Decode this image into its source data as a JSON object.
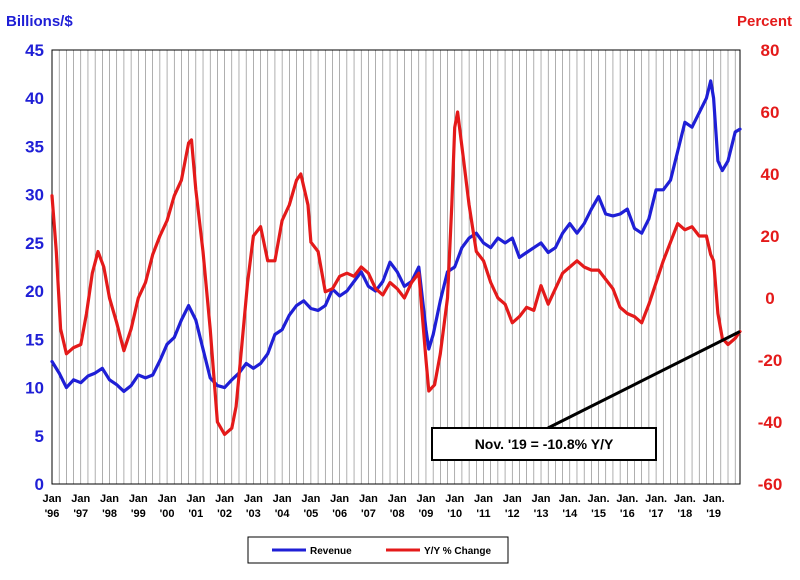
{
  "chart_data": {
    "type": "line",
    "left_axis": {
      "title": "Billions/$",
      "ylim": [
        0,
        45
      ],
      "ticks": [
        "45",
        "40",
        "35",
        "30",
        "25",
        "20",
        "15",
        "10",
        "5",
        "0"
      ],
      "color": "#1f1fd6"
    },
    "right_axis": {
      "title": "Percent",
      "ylim": [
        -60,
        80
      ],
      "ticks": [
        "80",
        "60",
        "40",
        "20",
        "0",
        "-20",
        "-40",
        "-60"
      ],
      "color": "#e41a1a"
    },
    "x_range": [
      1996.0,
      2019.917
    ],
    "x_ticks": [
      {
        "top": "Jan",
        "bottom": "'96",
        "x": 1996
      },
      {
        "top": "Jan",
        "bottom": "'97",
        "x": 1997
      },
      {
        "top": "Jan",
        "bottom": "'98",
        "x": 1998
      },
      {
        "top": "Jan",
        "bottom": "'99",
        "x": 1999
      },
      {
        "top": "Jan",
        "bottom": "'00",
        "x": 2000
      },
      {
        "top": "Jan",
        "bottom": "'01",
        "x": 2001
      },
      {
        "top": "Jan",
        "bottom": "'02",
        "x": 2002
      },
      {
        "top": "Jan",
        "bottom": "'03",
        "x": 2003
      },
      {
        "top": "Jan",
        "bottom": "'04",
        "x": 2004
      },
      {
        "top": "Jan",
        "bottom": "'05",
        "x": 2005
      },
      {
        "top": "Jan",
        "bottom": "'06",
        "x": 2006
      },
      {
        "top": "Jan",
        "bottom": "'07",
        "x": 2007
      },
      {
        "top": "Jan",
        "bottom": "'08",
        "x": 2008
      },
      {
        "top": "Jan",
        "bottom": "'09",
        "x": 2009
      },
      {
        "top": "Jan",
        "bottom": "'10",
        "x": 2010
      },
      {
        "top": "Jan",
        "bottom": "'11",
        "x": 2011
      },
      {
        "top": "Jan",
        "bottom": "'12",
        "x": 2012
      },
      {
        "top": "Jan",
        "bottom": "'13",
        "x": 2013
      },
      {
        "top": "Jan.",
        "bottom": "'14",
        "x": 2014
      },
      {
        "top": "Jan.",
        "bottom": "'15",
        "x": 2015
      },
      {
        "top": "Jan.",
        "bottom": "'16",
        "x": 2016
      },
      {
        "top": "Jan.",
        "bottom": "'17",
        "x": 2017
      },
      {
        "top": "Jan.",
        "bottom": "'18",
        "x": 2018
      },
      {
        "top": "Jan.",
        "bottom": "'19",
        "x": 2019
      }
    ],
    "grid": "vertical-monthly",
    "series": [
      {
        "name": "Revenue",
        "axis": "left",
        "color": "#1f1fd6",
        "points": [
          [
            1996.0,
            12.7
          ],
          [
            1996.25,
            11.5
          ],
          [
            1996.5,
            10.0
          ],
          [
            1996.75,
            10.8
          ],
          [
            1997.0,
            10.5
          ],
          [
            1997.25,
            11.2
          ],
          [
            1997.5,
            11.5
          ],
          [
            1997.75,
            12.0
          ],
          [
            1998.0,
            10.8
          ],
          [
            1998.25,
            10.3
          ],
          [
            1998.5,
            9.6
          ],
          [
            1998.75,
            10.2
          ],
          [
            1999.0,
            11.3
          ],
          [
            1999.25,
            11.0
          ],
          [
            1999.5,
            11.3
          ],
          [
            1999.75,
            12.8
          ],
          [
            2000.0,
            14.5
          ],
          [
            2000.25,
            15.2
          ],
          [
            2000.5,
            17.0
          ],
          [
            2000.75,
            18.5
          ],
          [
            2001.0,
            17.0
          ],
          [
            2001.25,
            14.0
          ],
          [
            2001.5,
            11.0
          ],
          [
            2001.75,
            10.2
          ],
          [
            2002.0,
            10.0
          ],
          [
            2002.25,
            10.8
          ],
          [
            2002.5,
            11.5
          ],
          [
            2002.75,
            12.5
          ],
          [
            2003.0,
            12.0
          ],
          [
            2003.25,
            12.5
          ],
          [
            2003.5,
            13.5
          ],
          [
            2003.75,
            15.5
          ],
          [
            2004.0,
            16.0
          ],
          [
            2004.25,
            17.5
          ],
          [
            2004.5,
            18.5
          ],
          [
            2004.75,
            19.0
          ],
          [
            2005.0,
            18.2
          ],
          [
            2005.25,
            18.0
          ],
          [
            2005.5,
            18.5
          ],
          [
            2005.75,
            20.2
          ],
          [
            2006.0,
            19.5
          ],
          [
            2006.25,
            20.0
          ],
          [
            2006.5,
            21.0
          ],
          [
            2006.75,
            22.0
          ],
          [
            2007.0,
            20.5
          ],
          [
            2007.25,
            20.0
          ],
          [
            2007.5,
            21.0
          ],
          [
            2007.75,
            23.0
          ],
          [
            2008.0,
            22.0
          ],
          [
            2008.25,
            20.5
          ],
          [
            2008.5,
            21.0
          ],
          [
            2008.75,
            22.5
          ],
          [
            2009.0,
            16.0
          ],
          [
            2009.1,
            14.0
          ],
          [
            2009.25,
            15.5
          ],
          [
            2009.5,
            19.0
          ],
          [
            2009.75,
            22.0
          ],
          [
            2010.0,
            22.5
          ],
          [
            2010.25,
            24.5
          ],
          [
            2010.5,
            25.5
          ],
          [
            2010.75,
            26.0
          ],
          [
            2011.0,
            25.0
          ],
          [
            2011.25,
            24.5
          ],
          [
            2011.5,
            25.5
          ],
          [
            2011.75,
            25.0
          ],
          [
            2012.0,
            25.5
          ],
          [
            2012.25,
            23.5
          ],
          [
            2012.5,
            24.0
          ],
          [
            2012.75,
            24.5
          ],
          [
            2013.0,
            25.0
          ],
          [
            2013.25,
            24.0
          ],
          [
            2013.5,
            24.5
          ],
          [
            2013.75,
            26.0
          ],
          [
            2014.0,
            27.0
          ],
          [
            2014.25,
            26.0
          ],
          [
            2014.5,
            27.0
          ],
          [
            2014.75,
            28.5
          ],
          [
            2015.0,
            29.8
          ],
          [
            2015.25,
            28.0
          ],
          [
            2015.5,
            27.8
          ],
          [
            2015.75,
            28.0
          ],
          [
            2016.0,
            28.5
          ],
          [
            2016.25,
            26.5
          ],
          [
            2016.5,
            26.0
          ],
          [
            2016.75,
            27.5
          ],
          [
            2017.0,
            30.5
          ],
          [
            2017.25,
            30.5
          ],
          [
            2017.5,
            31.5
          ],
          [
            2017.75,
            34.5
          ],
          [
            2018.0,
            37.5
          ],
          [
            2018.25,
            37.0
          ],
          [
            2018.5,
            38.5
          ],
          [
            2018.75,
            40.0
          ],
          [
            2018.9,
            41.8
          ],
          [
            2019.0,
            40.0
          ],
          [
            2019.15,
            33.5
          ],
          [
            2019.3,
            32.5
          ],
          [
            2019.5,
            33.5
          ],
          [
            2019.75,
            36.5
          ],
          [
            2019.917,
            36.8
          ]
        ]
      },
      {
        "name": "Y/Y % Change",
        "axis": "right",
        "color": "#e41a1a",
        "points": [
          [
            1996.0,
            33
          ],
          [
            1996.15,
            15
          ],
          [
            1996.3,
            -10
          ],
          [
            1996.5,
            -18
          ],
          [
            1996.75,
            -16
          ],
          [
            1997.0,
            -15
          ],
          [
            1997.2,
            -5
          ],
          [
            1997.4,
            8
          ],
          [
            1997.6,
            15
          ],
          [
            1997.8,
            10
          ],
          [
            1998.0,
            0
          ],
          [
            1998.25,
            -8
          ],
          [
            1998.5,
            -17
          ],
          [
            1998.75,
            -10
          ],
          [
            1999.0,
            0
          ],
          [
            1999.25,
            5
          ],
          [
            1999.5,
            14
          ],
          [
            1999.75,
            20
          ],
          [
            2000.0,
            25
          ],
          [
            2000.25,
            33
          ],
          [
            2000.5,
            38
          ],
          [
            2000.75,
            50
          ],
          [
            2000.85,
            51
          ],
          [
            2001.0,
            35
          ],
          [
            2001.25,
            15
          ],
          [
            2001.5,
            -10
          ],
          [
            2001.75,
            -40
          ],
          [
            2002.0,
            -44
          ],
          [
            2002.25,
            -42
          ],
          [
            2002.4,
            -35
          ],
          [
            2002.6,
            -15
          ],
          [
            2002.8,
            5
          ],
          [
            2003.0,
            20
          ],
          [
            2003.25,
            23
          ],
          [
            2003.5,
            12
          ],
          [
            2003.75,
            12
          ],
          [
            2004.0,
            25
          ],
          [
            2004.25,
            30
          ],
          [
            2004.5,
            38
          ],
          [
            2004.65,
            40
          ],
          [
            2004.9,
            30
          ],
          [
            2005.0,
            18
          ],
          [
            2005.25,
            15
          ],
          [
            2005.5,
            2
          ],
          [
            2005.75,
            3
          ],
          [
            2006.0,
            7
          ],
          [
            2006.25,
            8
          ],
          [
            2006.5,
            7
          ],
          [
            2006.75,
            10
          ],
          [
            2007.0,
            8
          ],
          [
            2007.25,
            3
          ],
          [
            2007.5,
            1
          ],
          [
            2007.75,
            5
          ],
          [
            2008.0,
            3
          ],
          [
            2008.25,
            0
          ],
          [
            2008.5,
            5
          ],
          [
            2008.75,
            8
          ],
          [
            2009.0,
            -20
          ],
          [
            2009.1,
            -30
          ],
          [
            2009.3,
            -28
          ],
          [
            2009.5,
            -18
          ],
          [
            2009.75,
            0
          ],
          [
            2009.9,
            30
          ],
          [
            2010.0,
            55
          ],
          [
            2010.1,
            60
          ],
          [
            2010.3,
            45
          ],
          [
            2010.5,
            30
          ],
          [
            2010.75,
            15
          ],
          [
            2011.0,
            12
          ],
          [
            2011.25,
            5
          ],
          [
            2011.5,
            0
          ],
          [
            2011.75,
            -2
          ],
          [
            2012.0,
            -8
          ],
          [
            2012.25,
            -6
          ],
          [
            2012.5,
            -3
          ],
          [
            2012.75,
            -4
          ],
          [
            2013.0,
            4
          ],
          [
            2013.25,
            -2
          ],
          [
            2013.5,
            3
          ],
          [
            2013.75,
            8
          ],
          [
            2014.0,
            10
          ],
          [
            2014.25,
            12
          ],
          [
            2014.5,
            10
          ],
          [
            2014.75,
            9
          ],
          [
            2015.0,
            9
          ],
          [
            2015.25,
            6
          ],
          [
            2015.5,
            3
          ],
          [
            2015.75,
            -3
          ],
          [
            2016.0,
            -5
          ],
          [
            2016.25,
            -6
          ],
          [
            2016.5,
            -8
          ],
          [
            2016.75,
            -2
          ],
          [
            2017.0,
            5
          ],
          [
            2017.25,
            12
          ],
          [
            2017.5,
            18
          ],
          [
            2017.75,
            24
          ],
          [
            2018.0,
            22
          ],
          [
            2018.25,
            23
          ],
          [
            2018.5,
            20
          ],
          [
            2018.75,
            20
          ],
          [
            2018.9,
            14
          ],
          [
            2019.0,
            12
          ],
          [
            2019.15,
            -5
          ],
          [
            2019.3,
            -13
          ],
          [
            2019.5,
            -15
          ],
          [
            2019.75,
            -13
          ],
          [
            2019.917,
            -10.8
          ]
        ]
      }
    ],
    "annotation": {
      "text": "Nov. '19 = -10.8% Y/Y",
      "x": 2019.917,
      "y": -10.8,
      "axis": "right"
    },
    "legend": {
      "position": "bottom-center"
    }
  }
}
